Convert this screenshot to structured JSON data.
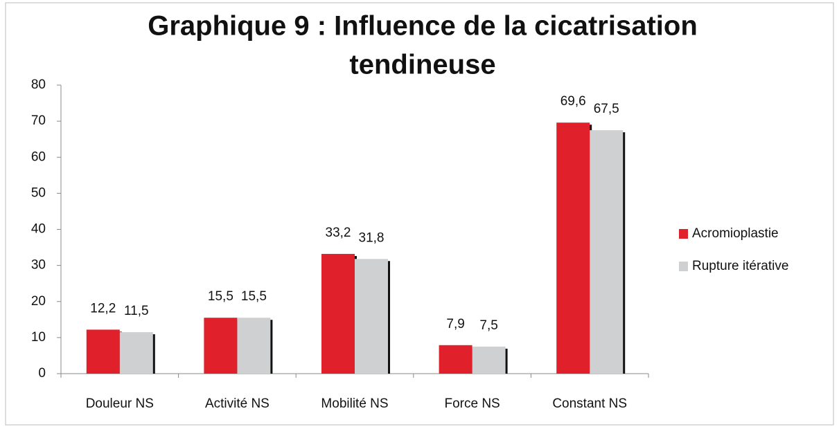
{
  "chart_data": {
    "type": "bar",
    "title": [
      "Graphique 9 : Influence de la cicatrisation",
      "tendineuse"
    ],
    "categories": [
      "Douleur NS",
      "Activité NS",
      "Mobilité NS",
      "Force NS",
      "Constant NS"
    ],
    "series": [
      {
        "name": "Acromioplastie",
        "color": "#e0202a",
        "values": [
          12.2,
          15.5,
          33.2,
          7.9,
          69.6
        ],
        "value_labels": [
          "12,2",
          "15,5",
          "33,2",
          "7,9",
          "69,6"
        ]
      },
      {
        "name": "Rupture itérative",
        "color": "#cfd0d2",
        "values": [
          11.5,
          15.5,
          31.8,
          7.5,
          67.5
        ],
        "value_labels": [
          "11,5",
          "15,5",
          "31,8",
          "7,5",
          "67,5"
        ]
      }
    ],
    "ylim": [
      0,
      80
    ],
    "yticks": [
      0,
      10,
      20,
      30,
      40,
      50,
      60,
      70,
      80
    ],
    "grid": false,
    "legend": "right"
  }
}
